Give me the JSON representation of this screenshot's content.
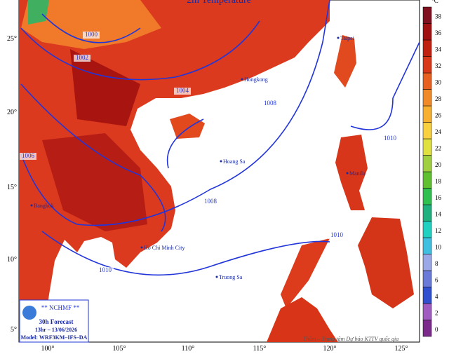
{
  "title": "2m Temperature",
  "unit": "°C",
  "lat_labels": [
    "25°",
    "20°",
    "15°",
    "10°",
    "5°"
  ],
  "lon_labels": [
    "100°",
    "105°",
    "110°",
    "115°",
    "120°",
    "125°"
  ],
  "isobar_labels": [
    "1000",
    "1002",
    "1004",
    "1006",
    "1008",
    "1008",
    "1010",
    "1010",
    "1010"
  ],
  "places": [
    "Hongkong",
    "Taipei",
    "Hoang Sa",
    "Truong Sa",
    "Manila",
    "Ho Chi Minh City",
    "Bangkok"
  ],
  "info": {
    "agency": "** NCHMF **",
    "forecast": "30h Forecast",
    "time": "13hr – 13/06/2026",
    "model": "Model: WRF3KM–IFS–DA"
  },
  "footer": "Thâm – Trung tâm Dự báo KTTV quốc gia",
  "colorbar": {
    "ticks": [
      0,
      2,
      4,
      6,
      8,
      10,
      12,
      14,
      16,
      18,
      20,
      22,
      24,
      26,
      28,
      30,
      32,
      34,
      36,
      38
    ],
    "colors": [
      "#7b2a8c",
      "#a05cc0",
      "#3050d0",
      "#6a7ad8",
      "#9aa8e8",
      "#40c0e0",
      "#20d0c0",
      "#20b080",
      "#30c050",
      "#60c030",
      "#a0d040",
      "#e0e040",
      "#f8d040",
      "#f8b030",
      "#f08a28",
      "#e86020",
      "#d83818",
      "#c02010",
      "#a01010",
      "#801020"
    ]
  }
}
